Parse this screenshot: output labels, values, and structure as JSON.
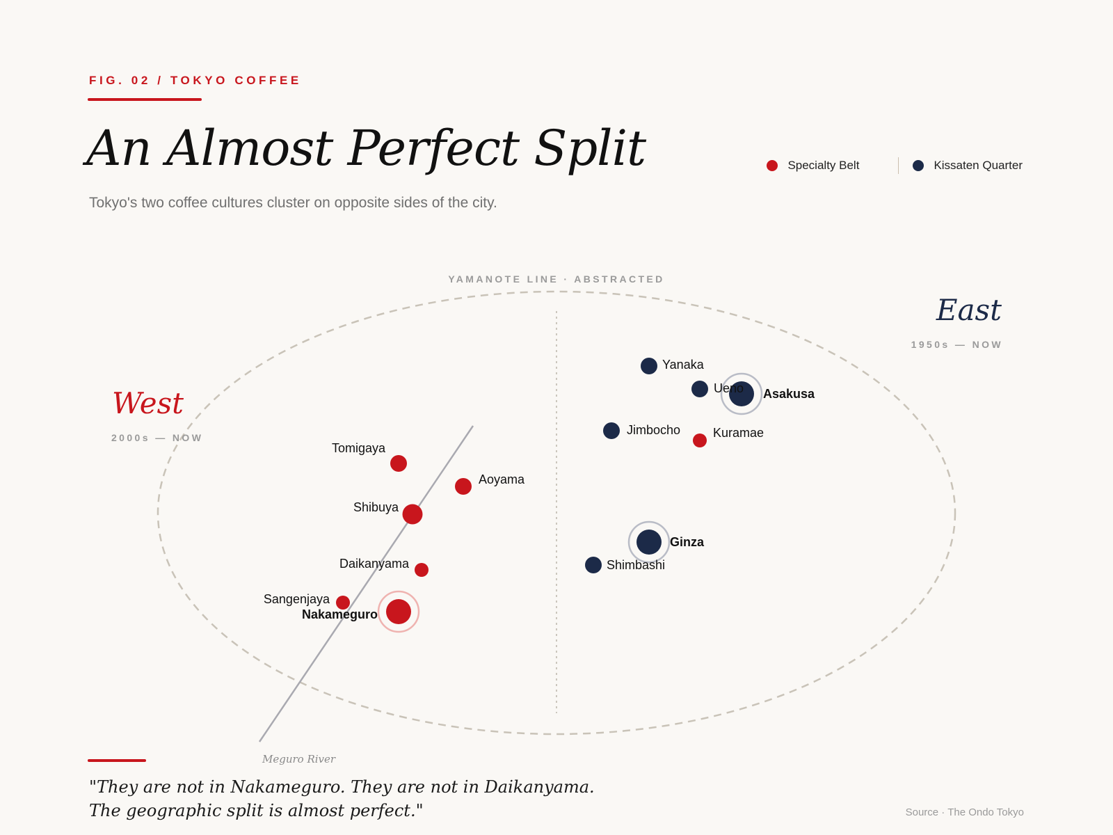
{
  "header": {
    "kicker": "FIG. 02 / TOKYO COFFEE",
    "title": "An Almost Perfect Split",
    "subtitle": "Tokyo's two coffee cultures cluster on opposite sides of the city."
  },
  "legend": [
    {
      "label": "Specialty Belt",
      "color": "#c8161d"
    },
    {
      "label": "Kissaten Quarter",
      "color": "#1c2a48"
    }
  ],
  "map": {
    "ring_label": "YAMANOTE LINE · ABSTRACTED",
    "river_label": "Meguro River",
    "west": {
      "title": "West",
      "era": "2000s — NOW",
      "color": "#c8161d"
    },
    "east": {
      "title": "East",
      "era": "1950s — NOW",
      "color": "#1c2a48"
    }
  },
  "places": [
    {
      "name": "Tomigaya",
      "type": "specialty",
      "size": "medium"
    },
    {
      "name": "Aoyama",
      "type": "specialty",
      "size": "medium"
    },
    {
      "name": "Shibuya",
      "type": "specialty",
      "size": "large"
    },
    {
      "name": "Daikanyama",
      "type": "specialty",
      "size": "small"
    },
    {
      "name": "Sangenjaya",
      "type": "specialty",
      "size": "small"
    },
    {
      "name": "Nakameguro",
      "type": "specialty",
      "size": "highlight",
      "emphasized": true
    },
    {
      "name": "Yanaka",
      "type": "kissaten",
      "size": "medium"
    },
    {
      "name": "Ueno",
      "type": "kissaten",
      "size": "medium"
    },
    {
      "name": "Asakusa",
      "type": "kissaten",
      "size": "highlight",
      "emphasized": true
    },
    {
      "name": "Jimbocho",
      "type": "kissaten",
      "size": "medium"
    },
    {
      "name": "Kuramae",
      "type": "specialty",
      "size": "small"
    },
    {
      "name": "Ginza",
      "type": "kissaten",
      "size": "highlight",
      "emphasized": true
    },
    {
      "name": "Shimbashi",
      "type": "kissaten",
      "size": "medium"
    }
  ],
  "footer": {
    "quote_line1": "\"They are not in Nakameguro. They are not in Daikanyama.",
    "quote_line2": "The geographic split is almost perfect.\"",
    "source": "Source · The Ondo Tokyo"
  }
}
